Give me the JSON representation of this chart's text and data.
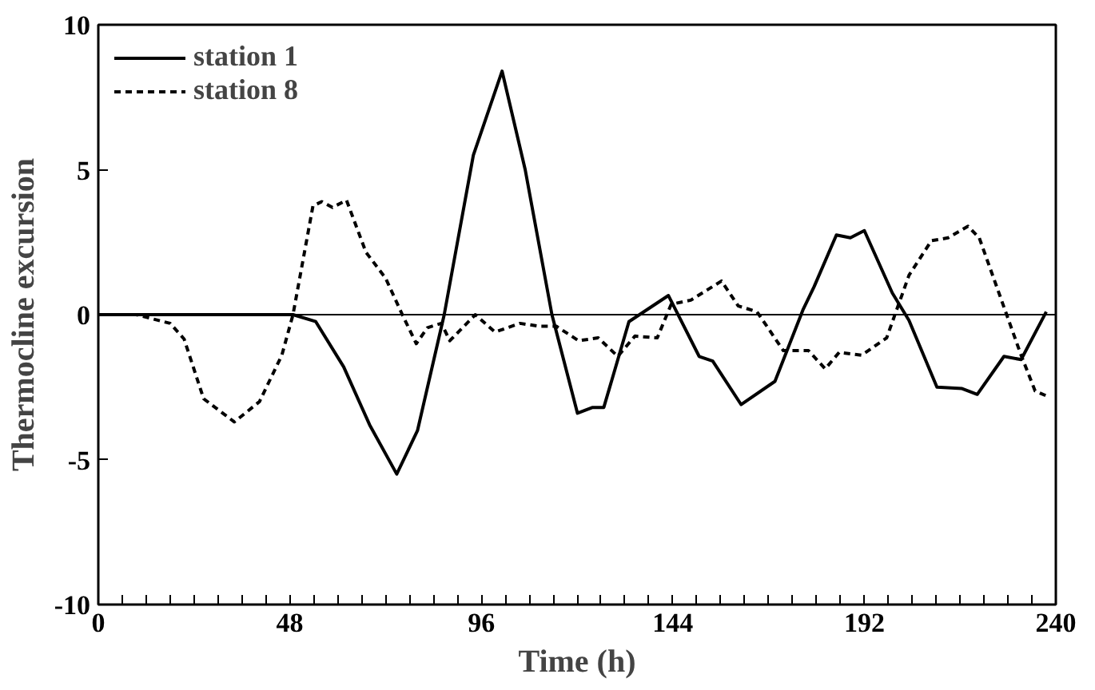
{
  "chart_data": {
    "type": "line",
    "xlabel": "Time (h)",
    "ylabel": "Thermocline excursion",
    "xlim": [
      0,
      240
    ],
    "ylim": [
      -10,
      10
    ],
    "xticks": [
      0,
      {
        "value": 6,
        "label": null
      },
      {
        "value": 12,
        "label": null
      },
      {
        "value": 18,
        "label": null
      },
      {
        "value": 24,
        "label": null
      },
      {
        "value": 30,
        "label": null
      },
      {
        "value": 36,
        "label": null
      },
      {
        "value": 42,
        "label": null
      },
      48,
      {
        "value": 54,
        "label": null
      },
      {
        "value": 60,
        "label": null
      },
      {
        "value": 66,
        "label": null
      },
      {
        "value": 72,
        "label": null
      },
      {
        "value": 78,
        "label": null
      },
      {
        "value": 84,
        "label": null
      },
      {
        "value": 90,
        "label": null
      },
      96,
      {
        "value": 102,
        "label": null
      },
      {
        "value": 108,
        "label": null
      },
      {
        "value": 114,
        "label": null
      },
      {
        "value": 120,
        "label": null
      },
      {
        "value": 126,
        "label": null
      },
      {
        "value": 132,
        "label": null
      },
      {
        "value": 138,
        "label": null
      },
      144,
      {
        "value": 150,
        "label": null
      },
      {
        "value": 156,
        "label": null
      },
      {
        "value": 162,
        "label": null
      },
      {
        "value": 168,
        "label": null
      },
      {
        "value": 174,
        "label": null
      },
      {
        "value": 180,
        "label": null
      },
      {
        "value": 186,
        "label": null
      },
      192,
      {
        "value": 198,
        "label": null
      },
      {
        "value": 204,
        "label": null
      },
      {
        "value": 210,
        "label": null
      },
      {
        "value": 216,
        "label": null
      },
      {
        "value": 222,
        "label": null
      },
      {
        "value": 228,
        "label": null
      },
      {
        "value": 234,
        "label": null
      },
      240
    ],
    "yticks": [
      -10,
      -5,
      0,
      5,
      10
    ],
    "grid": false,
    "legend": "top left",
    "ref_lines": [
      {
        "axis": "y",
        "value": 0,
        "label": null,
        "color": "#000000"
      }
    ],
    "series": [
      {
        "name": "station 1",
        "color": "#000000",
        "line_style": "solid",
        "x": [
          0,
          20,
          40,
          48.8,
          54.5,
          61.5,
          68,
          74.8,
          80,
          86.7,
          94,
          101.2,
          107,
          113.7,
          120.1,
          123.9,
          126.7,
          133,
          142.9,
          150.6,
          154,
          161.1,
          169.6,
          176.6,
          179.4,
          185,
          188.5,
          192,
          199,
          203.2,
          210.2,
          216.5,
          220.3,
          227,
          231.3,
          237.6
        ],
        "values": [
          0,
          0,
          0,
          0,
          -0.24,
          -1.8,
          -3.8,
          -5.5,
          -4.0,
          0,
          5.5,
          8.4,
          5.0,
          0,
          -3.4,
          -3.2,
          -3.2,
          -0.24,
          0.66,
          -1.44,
          -1.6,
          -3.1,
          -2.3,
          0.16,
          0.96,
          2.75,
          2.65,
          2.9,
          0.75,
          -0.2,
          -2.5,
          -2.55,
          -2.75,
          -1.44,
          -1.55,
          0.1
        ]
      },
      {
        "name": "station 8",
        "color": "#000000",
        "line_style": "dashed",
        "x": [
          0,
          9.5,
          18,
          21.5,
          26.4,
          34.1,
          40.4,
          46,
          48.8,
          53.8,
          56,
          58.7,
          62.2,
          67.1,
          72,
          76.2,
          79.7,
          82.5,
          86,
          88.1,
          94.5,
          99.4,
          105.7,
          110.6,
          114.8,
          120.4,
          125.3,
          130.2,
          134.5,
          140.1,
          143.6,
          148.5,
          156.2,
          160.4,
          165.1,
          171.7,
          178,
          182.2,
          185.7,
          191.3,
          197.6,
          203.2,
          208.8,
          213,
          218,
          220.8,
          227,
          231.3,
          234.8,
          237.6
        ],
        "values": [
          0,
          0,
          -0.3,
          -0.84,
          -2.9,
          -3.7,
          -3.0,
          -1.4,
          0,
          3.75,
          3.9,
          3.7,
          3.95,
          2.15,
          1.26,
          0,
          -1.0,
          -0.45,
          -0.3,
          -0.9,
          0,
          -0.6,
          -0.3,
          -0.4,
          -0.4,
          -0.9,
          -0.8,
          -1.44,
          -0.74,
          -0.8,
          0.36,
          0.5,
          1.16,
          0.3,
          0.1,
          -1.24,
          -1.24,
          -1.87,
          -1.3,
          -1.4,
          -0.8,
          1.36,
          2.55,
          2.65,
          3.05,
          2.65,
          0.26,
          -1.4,
          -2.63,
          -2.8
        ]
      }
    ]
  }
}
